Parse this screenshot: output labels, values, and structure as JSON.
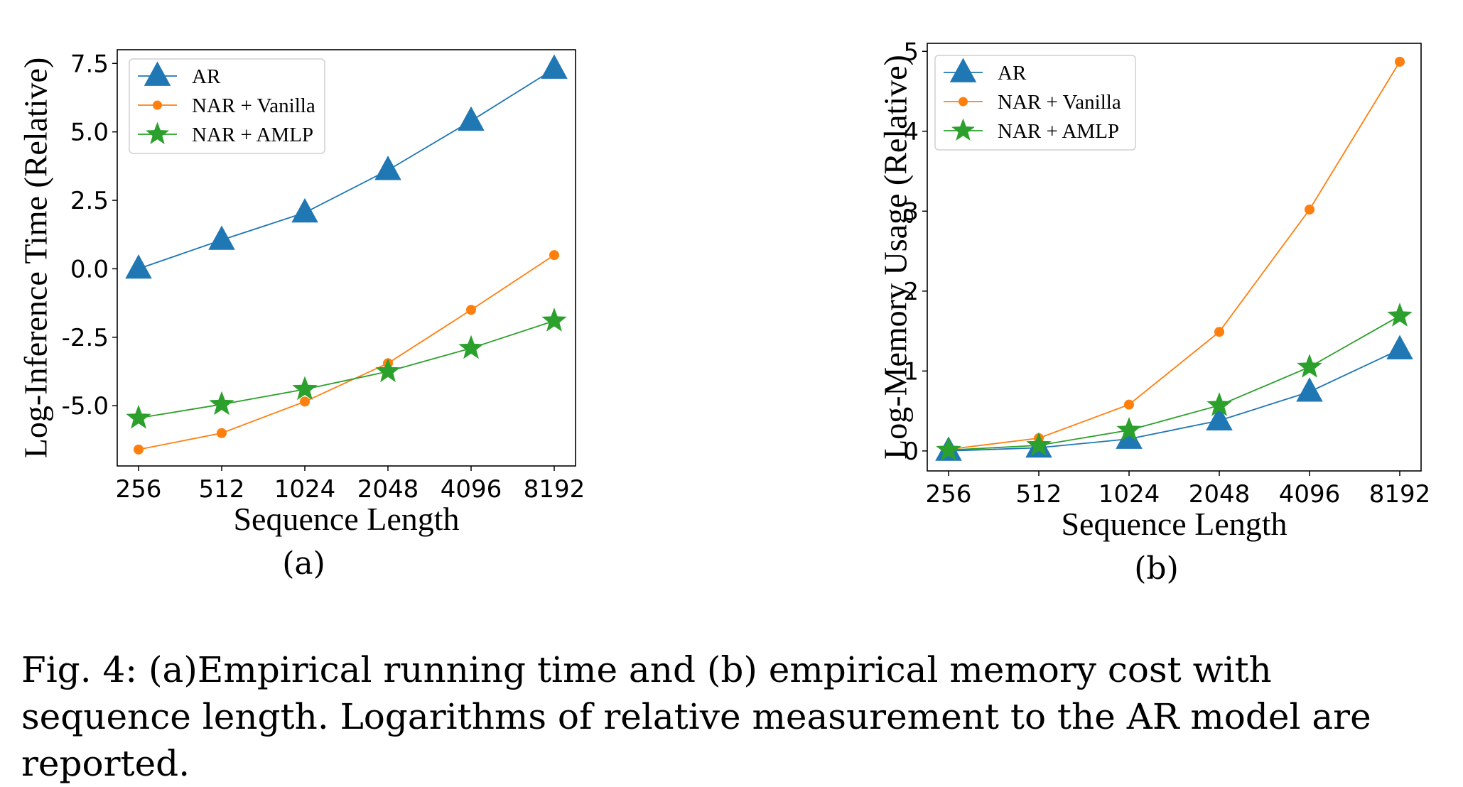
{
  "colors": {
    "AR": "#1f77b4",
    "NAR + Vanilla": "#ff7f0e",
    "NAR + AMLP": "#2ca02c"
  },
  "chart_data": [
    {
      "type": "line",
      "label": "(a)",
      "title": "",
      "xlabel": "Sequence Length",
      "ylabel": "Log-Inference Time (Relative)",
      "categories": [
        "256",
        "512",
        "1024",
        "2048",
        "4096",
        "8192"
      ],
      "yticks": [
        -5.0,
        -2.5,
        0.0,
        2.5,
        5.0,
        7.5
      ],
      "ytick_labels": [
        "-5.0",
        "-2.5",
        "0.0",
        "2.5",
        "5.0",
        "7.5"
      ],
      "ylim": [
        -7.2,
        8.0
      ],
      "legend": "top-left",
      "grid": false,
      "series": [
        {
          "name": "AR",
          "marker": "triangle",
          "values": [
            0.0,
            1.05,
            2.05,
            3.6,
            5.4,
            7.3
          ]
        },
        {
          "name": "NAR + Vanilla",
          "marker": "circle",
          "values": [
            -6.6,
            -6.0,
            -4.85,
            -3.45,
            -1.5,
            0.5
          ]
        },
        {
          "name": "NAR + AMLP",
          "marker": "star",
          "values": [
            -5.45,
            -4.95,
            -4.4,
            -3.75,
            -2.9,
            -1.9
          ]
        }
      ]
    },
    {
      "type": "line",
      "label": "(b)",
      "title": "",
      "xlabel": "Sequence Length",
      "ylabel": "Log-Memory Usage (Relative)",
      "categories": [
        "256",
        "512",
        "1024",
        "2048",
        "4096",
        "8192"
      ],
      "yticks": [
        0,
        1,
        2,
        3,
        4,
        5
      ],
      "ytick_labels": [
        "0",
        "1",
        "2",
        "3",
        "4",
        "5"
      ],
      "ylim": [
        -0.25,
        5.1
      ],
      "legend": "top-left",
      "grid": false,
      "series": [
        {
          "name": "AR",
          "marker": "triangle",
          "values": [
            0.0,
            0.04,
            0.15,
            0.38,
            0.74,
            1.27
          ]
        },
        {
          "name": "NAR + Vanilla",
          "marker": "circle",
          "values": [
            0.02,
            0.16,
            0.58,
            1.49,
            3.02,
            4.87
          ]
        },
        {
          "name": "NAR + AMLP",
          "marker": "star",
          "values": [
            0.01,
            0.07,
            0.26,
            0.57,
            1.05,
            1.69
          ]
        }
      ]
    }
  ],
  "caption": "Fig. 4: (a)Empirical running time and (b) empirical memory cost with sequence length. Logarithms of relative measurement to the AR model are reported."
}
